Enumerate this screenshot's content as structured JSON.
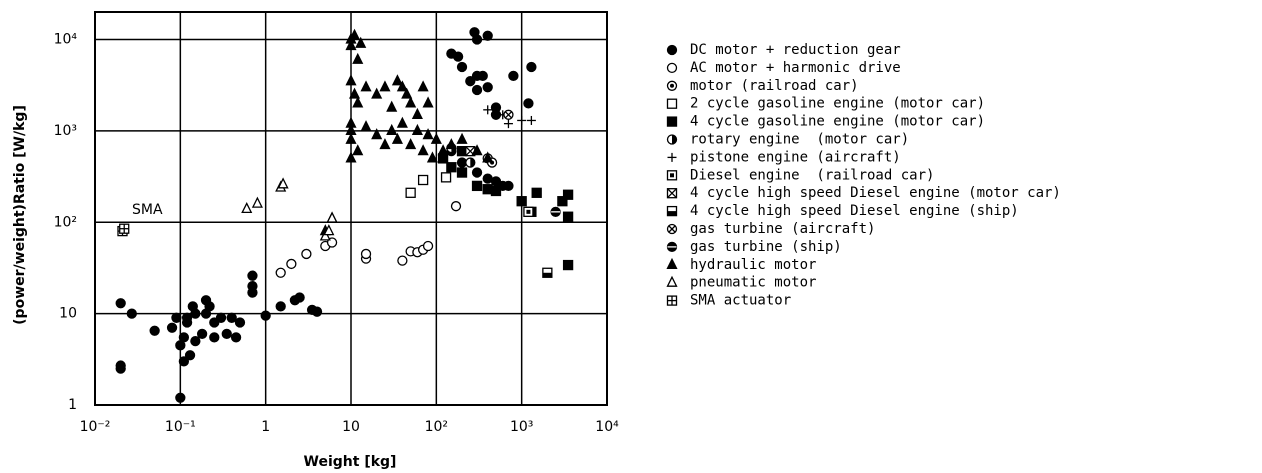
{
  "chart_data": {
    "type": "scatter",
    "xlabel": "Weight [kg]",
    "ylabel": "(power/weight)Ratio [W/kg]",
    "annotation": "SMA",
    "xscale": "log",
    "yscale": "log",
    "grid": true,
    "legend": "right",
    "color": "#000",
    "xlim": [
      0.01,
      10000
    ],
    "ylim": [
      1,
      20000
    ],
    "xticks": [
      {
        "value": 0.01,
        "label": "10⁻²"
      },
      {
        "value": 0.1,
        "label": "10⁻¹"
      },
      1,
      10,
      {
        "value": 100,
        "label": "10²"
      },
      {
        "value": 1000,
        "label": "10³"
      },
      {
        "value": 10000,
        "label": "10⁴"
      }
    ],
    "yticks": [
      1,
      10,
      {
        "value": 100,
        "label": "10²"
      },
      {
        "value": 1000,
        "label": "10³"
      },
      {
        "value": 10000,
        "label": "10⁴"
      }
    ],
    "series": [
      {
        "name": "DC motor + reduction gear",
        "marker": "filled-circle",
        "x": [
          0.02,
          0.02,
          0.02,
          0.027,
          0.05,
          0.08,
          0.09,
          0.1,
          0.1,
          0.11,
          0.11,
          0.12,
          0.13,
          0.12,
          0.14,
          0.15,
          0.15,
          0.18,
          0.2,
          0.2,
          0.22,
          0.25,
          0.25,
          0.3,
          0.35,
          0.4,
          0.45,
          0.5,
          0.7,
          0.7,
          0.7,
          1,
          1.5,
          2.2,
          2.5,
          3.5,
          4,
          150,
          180,
          200,
          250,
          280,
          300,
          400,
          300,
          350,
          300,
          400,
          500,
          800,
          1300,
          1200,
          500,
          150,
          200,
          300,
          400,
          500,
          600,
          700
        ],
        "values": [
          2.5,
          2.7,
          13,
          10,
          6.5,
          7,
          9,
          4.5,
          1.2,
          3,
          5.5,
          9,
          3.5,
          8,
          12,
          10,
          5,
          6,
          10,
          14,
          12,
          5.5,
          8,
          9,
          6,
          9,
          5.5,
          8,
          26,
          20,
          17,
          9.5,
          12,
          14,
          15,
          11,
          10.5,
          7000,
          6500,
          5000,
          3500,
          12000,
          10000,
          11000,
          4000,
          4000,
          2800,
          3000,
          1800,
          4000,
          5000,
          2000,
          1500,
          600,
          450,
          350,
          300,
          280,
          250,
          250
        ]
      },
      {
        "name": "AC motor + harmonic drive",
        "marker": "open-circle",
        "x": [
          1.5,
          2,
          3,
          5,
          6,
          15,
          15,
          40,
          50,
          60,
          70,
          80,
          170,
          400
        ],
        "values": [
          28,
          35,
          45,
          55,
          60,
          40,
          45,
          38,
          48,
          47,
          50,
          55,
          150,
          500
        ]
      },
      {
        "name": "motor (railroad car)",
        "marker": "dot-circle",
        "x": [
          450
        ],
        "values": [
          450
        ]
      },
      {
        "name": "2 cycle gasoline engine (motor car)",
        "marker": "open-square",
        "x": [
          50,
          70,
          130
        ],
        "values": [
          210,
          290,
          310
        ]
      },
      {
        "name": "4 cycle gasoline engine (motor car)",
        "marker": "filled-square",
        "x": [
          120,
          150,
          200,
          200,
          300,
          400,
          500,
          1000,
          1500,
          1300,
          3000,
          3500,
          3500,
          3500
        ],
        "values": [
          500,
          400,
          350,
          600,
          250,
          230,
          220,
          170,
          210,
          130,
          170,
          200,
          115,
          34
        ]
      },
      {
        "name": "rotary engine  (motor car)",
        "marker": "half-circle",
        "x": [
          150,
          250
        ],
        "values": [
          650,
          450
        ]
      },
      {
        "name": "pistone engine (aircraft)",
        "marker": "plus",
        "x": [
          700,
          1000,
          1300,
          600,
          400
        ],
        "values": [
          1200,
          1300,
          1300,
          1500,
          1700
        ]
      },
      {
        "name": "Diesel engine  (railroad car)",
        "marker": "dot-square",
        "x": [
          1200
        ],
        "values": [
          130
        ]
      },
      {
        "name": "4 cycle high speed Diesel engine (motor car)",
        "marker": "x-square",
        "x": [
          250
        ],
        "values": [
          600
        ]
      },
      {
        "name": "4 cycle high speed Diesel engine (ship)",
        "marker": "half-square",
        "x": [
          2000
        ],
        "values": [
          28
        ]
      },
      {
        "name": "gas turbine (aircraft)",
        "marker": "x-circle",
        "x": [
          700
        ],
        "values": [
          1500
        ]
      },
      {
        "name": "gas turbine (ship)",
        "marker": "bar-circle",
        "x": [
          2500
        ],
        "values": [
          130
        ]
      },
      {
        "name": "hydraulic motor",
        "marker": "filled-triangle",
        "x": [
          10,
          11,
          10,
          12,
          10,
          11,
          12,
          15,
          20,
          25,
          30,
          35,
          40,
          45,
          50,
          60,
          70,
          80,
          10,
          10,
          10,
          12,
          15,
          20,
          25,
          30,
          35,
          40,
          50,
          60,
          70,
          80,
          90,
          100,
          120,
          150,
          200,
          300,
          400,
          5,
          6,
          10,
          13
        ],
        "values": [
          10000,
          11000,
          8500,
          6000,
          3500,
          2500,
          2000,
          3000,
          2500,
          3000,
          1800,
          3500,
          3000,
          2500,
          2000,
          1500,
          3000,
          2000,
          1200,
          1000,
          800,
          600,
          1100,
          900,
          700,
          1000,
          800,
          1200,
          700,
          1000,
          600,
          900,
          500,
          800,
          600,
          700,
          800,
          600,
          500,
          80,
          110,
          500,
          9000
        ]
      },
      {
        "name": "pneumatic motor",
        "marker": "open-triangle",
        "x": [
          0.6,
          0.8,
          1.5,
          1.6,
          5,
          5.5,
          6
        ],
        "values": [
          140,
          160,
          240,
          260,
          70,
          80,
          110
        ]
      },
      {
        "name": "SMA actuator",
        "marker": "plus-square",
        "x": [
          0.021,
          0.022
        ],
        "values": [
          80,
          85
        ]
      }
    ]
  }
}
